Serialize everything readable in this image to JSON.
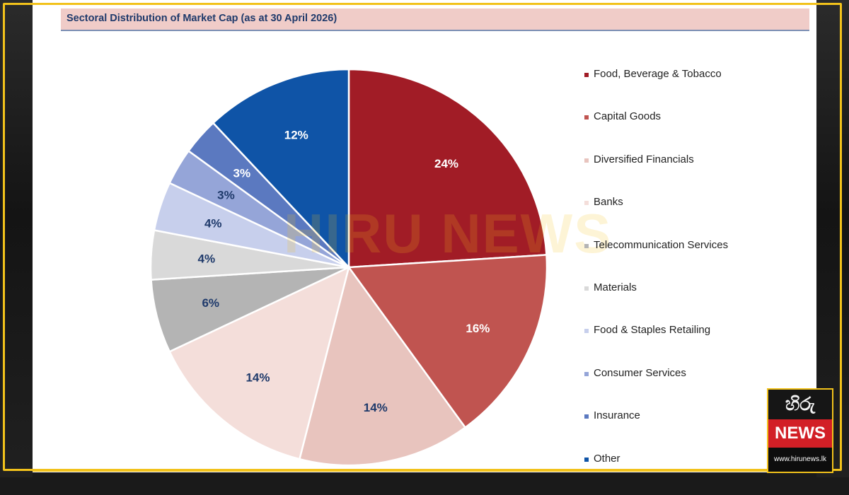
{
  "title": "Sectoral Distribution of Market Cap (as at 30 April 2026)",
  "watermark": "HIRU NEWS",
  "logo": {
    "top_text": "හිරු",
    "middle_text": "NEWS",
    "bottom_text": "www.hirunews.lk"
  },
  "chart_data": {
    "type": "pie",
    "title": "Sectoral Distribution of Market Cap (as at 30 April 2026)",
    "legend_position": "right",
    "slices": [
      {
        "label": "Food, Beverage & Tobacco",
        "value": 24,
        "display": "24%",
        "color": "#a11c26",
        "label_color": "#ffffff"
      },
      {
        "label": "Capital Goods",
        "value": 16,
        "display": "16%",
        "color": "#c05450",
        "label_color": "#ffffff"
      },
      {
        "label": "Diversified Financials",
        "value": 14,
        "display": "14%",
        "color": "#e8c4be",
        "label_color": "#1f3a6b"
      },
      {
        "label": "Banks",
        "value": 14,
        "display": "14%",
        "color": "#f4deda",
        "label_color": "#1f3a6b"
      },
      {
        "label": "Telecommunication Services",
        "value": 6,
        "display": "6%",
        "color": "#b4b4b4",
        "label_color": "#1f3a6b"
      },
      {
        "label": "Materials",
        "value": 4,
        "display": "4%",
        "color": "#d9d9d9",
        "label_color": "#1f3a6b"
      },
      {
        "label": "Food & Staples Retailing",
        "value": 4,
        "display": "4%",
        "color": "#c7cfec",
        "label_color": "#1f3a6b"
      },
      {
        "label": "Consumer Services",
        "value": 3,
        "display": "3%",
        "color": "#95a5d8",
        "label_color": "#1f3a6b"
      },
      {
        "label": "Insurance",
        "value": 3,
        "display": "3%",
        "color": "#5b79c0",
        "label_color": "#ffffff"
      },
      {
        "label": "Other",
        "value": 12,
        "display": "12%",
        "color": "#0f54a7",
        "label_color": "#ffffff"
      }
    ]
  }
}
